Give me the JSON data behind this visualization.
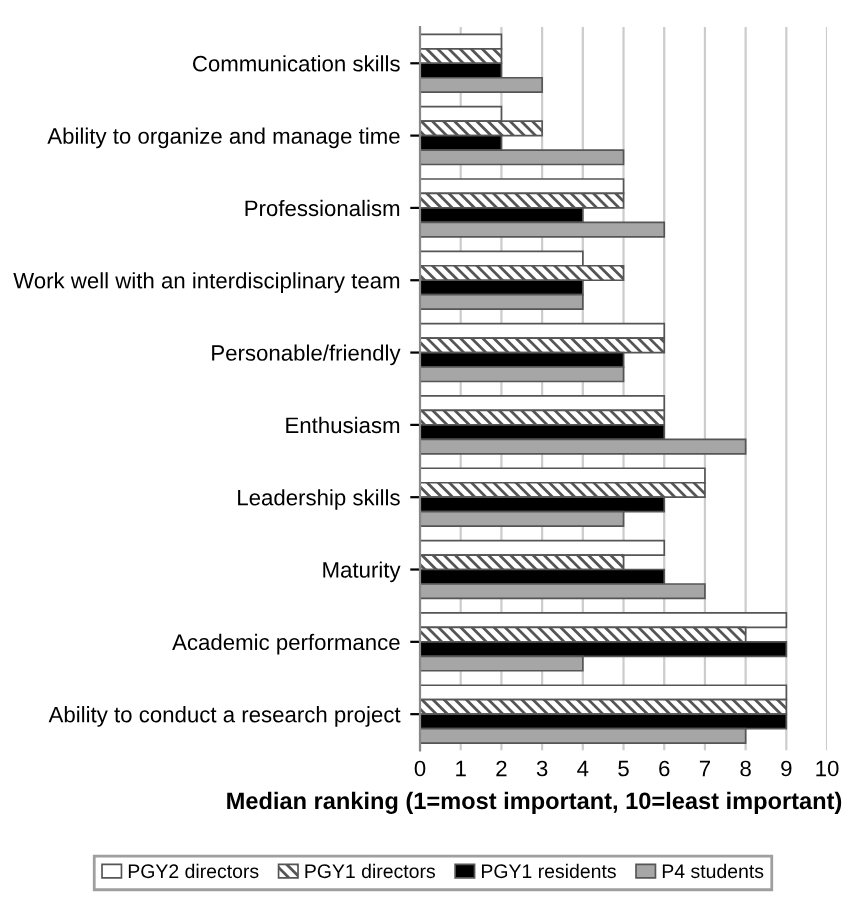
{
  "chart_data": {
    "type": "bar",
    "orientation": "horizontal",
    "xlabel": "Median ranking (1=most important, 10=least important)",
    "categories": [
      "Communication skills",
      "Ability to organize and manage time",
      "Professionalism",
      "Work well with an interdisciplinary team",
      "Personable/friendly",
      "Enthusiasm",
      "Leadership skills",
      "Maturity",
      "Academic performance",
      "Ability to conduct a research project"
    ],
    "series": [
      {
        "name": "PGY2 directors",
        "color": "#ffffff",
        "values": [
          2,
          2,
          5,
          4,
          6,
          6,
          7,
          6,
          9,
          9
        ]
      },
      {
        "name": "PGY1 directors",
        "color": "#555555",
        "values": [
          2,
          3,
          5,
          5,
          6,
          6,
          7,
          5,
          8,
          9
        ]
      },
      {
        "name": "PGY1 residents",
        "color": "#000000",
        "values": [
          2,
          2,
          4,
          4,
          5,
          6,
          6,
          6,
          9,
          9
        ]
      },
      {
        "name": "P4 students",
        "color": "#a6a6a6",
        "values": [
          3,
          5,
          6,
          4,
          5,
          8,
          5,
          7,
          4,
          8
        ]
      }
    ],
    "xlim": [
      0,
      10
    ],
    "xticks": [
      0,
      1,
      2,
      3,
      4,
      5,
      6,
      7,
      8,
      9,
      10
    ],
    "grid": "x",
    "legend": "bottom"
  }
}
